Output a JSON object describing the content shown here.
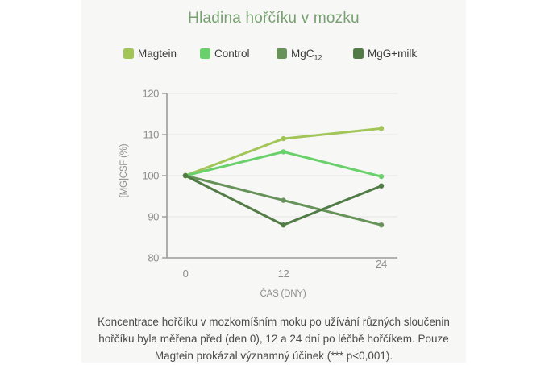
{
  "page": {
    "title": "Hladina hořčíku v mozku"
  },
  "caption": "Koncentrace hořčíku v mozkomíšním moku po užívání různých sloučenin hořčíku byla měřena před (den 0), 12 a 24 dní po léčbě hořčíkem. Pouze Magtein prokázal významný účinek (*** p<0,001).",
  "chart_data": {
    "type": "line",
    "title": "Hladina hořčíku v mozku",
    "x": [
      0,
      12,
      24
    ],
    "x_tick_labels": [
      "0",
      "12",
      "24"
    ],
    "xlabel": "ČAS (DNY)",
    "ylabel": "[MG]CSF (%)",
    "ylim": [
      80,
      120
    ],
    "yticks": [
      80,
      90,
      100,
      110,
      120
    ],
    "grid": true,
    "legend_position": "top",
    "series": [
      {
        "name": "Magtein",
        "label_main": "Magtein",
        "label_sub": "",
        "color": "#a2c557",
        "values": [
          100,
          109,
          111.5
        ]
      },
      {
        "name": "Control",
        "label_main": "Control",
        "label_sub": "",
        "color": "#69d06c",
        "values": [
          100,
          105.8,
          99.8
        ]
      },
      {
        "name": "MgC12",
        "label_main": "MgC",
        "label_sub": "12",
        "color": "#67935a",
        "values": [
          100,
          94,
          88
        ]
      },
      {
        "name": "MgG+milk",
        "label_main": "MgG+milk",
        "label_sub": "",
        "color": "#527c46",
        "values": [
          100,
          88,
          97.5
        ]
      }
    ]
  },
  "theme": {
    "card_bg": "#f7f7f6",
    "title_color": "#76a06f",
    "axis_color": "#9b9b9b",
    "grid_color": "#e4e4e2",
    "tick_label_color": "#8e8e8e",
    "caption_color": "#4b4b4b",
    "legend_text_color": "#3c3c3c"
  }
}
